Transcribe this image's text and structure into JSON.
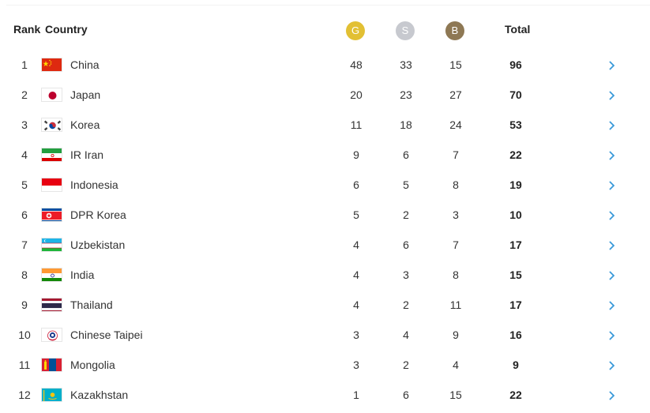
{
  "header": {
    "rank": "Rank",
    "country": "Country",
    "gold": "G",
    "silver": "S",
    "bronze": "B",
    "total": "Total"
  },
  "colors": {
    "gold": "#e2c034",
    "silver": "#c7c9cf",
    "bronze": "#8e7854",
    "chevron": "#3a9ad9"
  },
  "rows": [
    {
      "rank": "1",
      "country": "China",
      "gold": "48",
      "silver": "33",
      "bronze": "15",
      "total": "96",
      "flag": "china-flag-icon"
    },
    {
      "rank": "2",
      "country": "Japan",
      "gold": "20",
      "silver": "23",
      "bronze": "27",
      "total": "70",
      "flag": "japan-flag-icon"
    },
    {
      "rank": "3",
      "country": "Korea",
      "gold": "11",
      "silver": "18",
      "bronze": "24",
      "total": "53",
      "flag": "korea-flag-icon"
    },
    {
      "rank": "4",
      "country": "IR Iran",
      "gold": "9",
      "silver": "6",
      "bronze": "7",
      "total": "22",
      "flag": "iran-flag-icon"
    },
    {
      "rank": "5",
      "country": "Indonesia",
      "gold": "6",
      "silver": "5",
      "bronze": "8",
      "total": "19",
      "flag": "indonesia-flag-icon"
    },
    {
      "rank": "6",
      "country": "DPR Korea",
      "gold": "5",
      "silver": "2",
      "bronze": "3",
      "total": "10",
      "flag": "dpr-korea-flag-icon"
    },
    {
      "rank": "7",
      "country": "Uzbekistan",
      "gold": "4",
      "silver": "6",
      "bronze": "7",
      "total": "17",
      "flag": "uzbekistan-flag-icon"
    },
    {
      "rank": "8",
      "country": "India",
      "gold": "4",
      "silver": "3",
      "bronze": "8",
      "total": "15",
      "flag": "india-flag-icon"
    },
    {
      "rank": "9",
      "country": "Thailand",
      "gold": "4",
      "silver": "2",
      "bronze": "11",
      "total": "17",
      "flag": "thailand-flag-icon"
    },
    {
      "rank": "10",
      "country": "Chinese Taipei",
      "gold": "3",
      "silver": "4",
      "bronze": "9",
      "total": "16",
      "flag": "chinese-taipei-flag-icon"
    },
    {
      "rank": "11",
      "country": "Mongolia",
      "gold": "3",
      "silver": "2",
      "bronze": "4",
      "total": "9",
      "flag": "mongolia-flag-icon"
    },
    {
      "rank": "12",
      "country": "Kazakhstan",
      "gold": "1",
      "silver": "6",
      "bronze": "15",
      "total": "22",
      "flag": "kazakhstan-flag-icon"
    }
  ]
}
